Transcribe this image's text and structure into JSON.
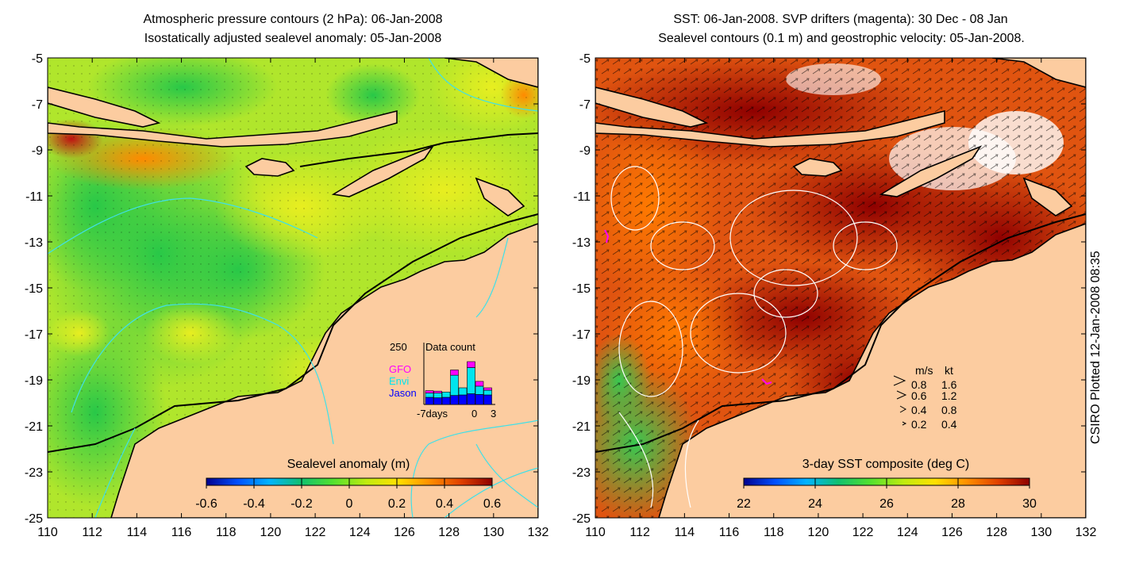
{
  "left_panel": {
    "title_line1": "Atmospheric pressure contours (2 hPa): 06-Jan-2008",
    "title_line2": "Isostatically adjusted sealevel anomaly: 05-Jan-2008",
    "colorbar": {
      "label": "Sealevel anomaly (m)",
      "ticks": [
        "-0.6",
        "-0.4",
        "-0.2",
        "0",
        "0.2",
        "0.4",
        "0.6"
      ],
      "range": [
        -0.6,
        0.6
      ],
      "colormap": [
        "#00008f",
        "#0050ff",
        "#00b4ff",
        "#10c070",
        "#50e030",
        "#c0ec10",
        "#ffe000",
        "#ff9000",
        "#e04000",
        "#8f0000"
      ]
    },
    "data_count_inset": {
      "title": "Data count",
      "ymax_label": "250",
      "x_ticks": [
        "-7days",
        "0",
        "3"
      ],
      "legend": [
        {
          "name": "GFO",
          "color": "#ff00ff"
        },
        {
          "name": "Envi",
          "color": "#00e5ee"
        },
        {
          "name": "Jason",
          "color": "#0000ff"
        }
      ],
      "bars": [
        {
          "jason": 30,
          "envi": 18,
          "gfo": 10
        },
        {
          "jason": 28,
          "envi": 20,
          "gfo": 8
        },
        {
          "jason": 30,
          "envi": 22,
          "gfo": 0
        },
        {
          "jason": 38,
          "envi": 85,
          "gfo": 22
        },
        {
          "jason": 40,
          "envi": 30,
          "gfo": 0
        },
        {
          "jason": 45,
          "envi": 110,
          "gfo": 25
        },
        {
          "jason": 42,
          "envi": 35,
          "gfo": 20
        },
        {
          "jason": 40,
          "envi": 20,
          "gfo": 10
        }
      ]
    }
  },
  "right_panel": {
    "title_line1": "SST: 06-Jan-2008. SVP drifters (magenta): 30 Dec - 08 Jan",
    "title_line2": "Sealevel contours (0.1 m) and geostrophic velocity: 05-Jan-2008.",
    "colorbar": {
      "label": "3-day SST composite (deg C)",
      "ticks": [
        "22",
        "24",
        "26",
        "28",
        "30"
      ],
      "range": [
        22,
        30
      ],
      "colormap": [
        "#00008f",
        "#0050ff",
        "#00b4ff",
        "#10c070",
        "#50e030",
        "#c0ec10",
        "#ffe000",
        "#ff9000",
        "#e04000",
        "#8f0000"
      ]
    },
    "velocity_legend": {
      "header_ms": "m/s",
      "header_kt": "kt",
      "rows": [
        {
          "ms": "0.8",
          "kt": "1.6"
        },
        {
          "ms": "0.6",
          "kt": "1.2"
        },
        {
          "ms": "0.4",
          "kt": "0.8"
        },
        {
          "ms": "0.2",
          "kt": "0.4"
        }
      ]
    }
  },
  "axes": {
    "lon_ticks": [
      "110",
      "112",
      "114",
      "116",
      "118",
      "120",
      "122",
      "124",
      "126",
      "128",
      "130",
      "132"
    ],
    "lat_ticks": [
      "-5",
      "-7",
      "-9",
      "-11",
      "-13",
      "-15",
      "-17",
      "-19",
      "-21",
      "-23",
      "-25"
    ],
    "lon_range": [
      110,
      132
    ],
    "lat_range": [
      -25,
      -5
    ]
  },
  "plotted_label": "CSIRO Plotted 12-Jan-2008 08:35",
  "colors": {
    "land": "#fccca0",
    "coast": "#000000",
    "pressure_contour": "#40e0e8",
    "sealevel_contour": "#ffffff",
    "drifter": "#ff00ff"
  }
}
